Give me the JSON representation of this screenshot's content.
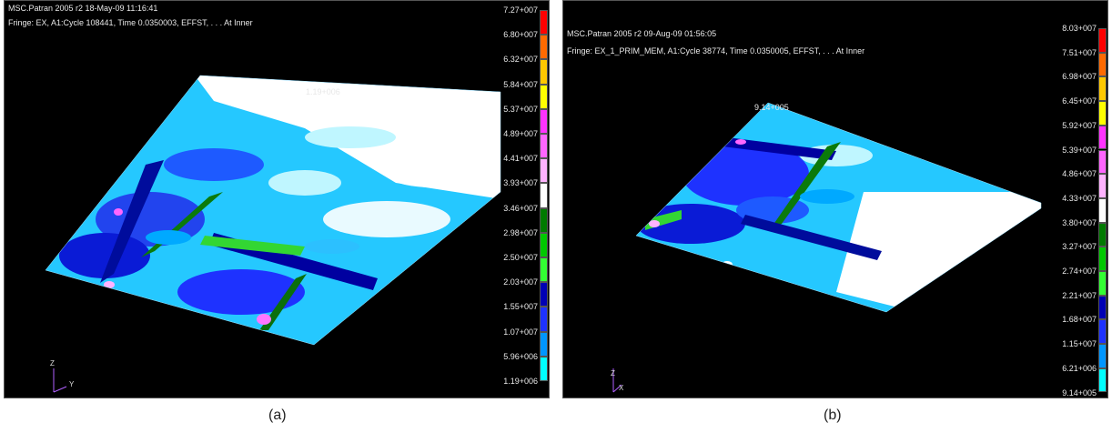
{
  "panels": [
    {
      "id": "a",
      "header_line1": "MSC.Patran 2005 r2 18-May-09 11:16:41",
      "header_line2": "Fringe: EX, A1:Cycle 108441, Time 0.0350003, EFFST, . . . At Inner",
      "peak_label": "1.19+006",
      "axis_z": "Z",
      "axis_y": "Y",
      "caption": "(a)",
      "legend_labels": [
        "7.27+007",
        "6.80+007",
        "6.32+007",
        "5.84+007",
        "5.37+007",
        "4.89+007",
        "4.41+007",
        "3.93+007",
        "3.46+007",
        "2.98+007",
        "2.50+007",
        "2.03+007",
        "1.55+007",
        "1.07+007",
        "5.96+006",
        "1.19+006"
      ]
    },
    {
      "id": "b",
      "header_line1": "MSC.Patran 2005 r2 09-Aug-09 01:56:05",
      "header_line2": "Fringe: EX_1_PRIM_MEM, A1:Cycle 38774, Time 0.0350005, EFFST, . . . At Inner",
      "peak_label": "9.14+005",
      "axis_z": "Z",
      "axis_x": "X",
      "caption": "(b)",
      "legend_labels": [
        "8.03+007",
        "7.51+007",
        "6.98+007",
        "6.45+007",
        "5.92+007",
        "5.39+007",
        "4.86+007",
        "4.33+007",
        "3.80+007",
        "3.27+007",
        "2.74+007",
        "2.21+007",
        "1.68+007",
        "1.15+007",
        "6.21+006",
        "9.14+005"
      ]
    }
  ],
  "legend_colors": [
    "#ff0000",
    "#ff6a00",
    "#ffc800",
    "#ffff00",
    "#ff33ff",
    "#ff66ff",
    "#ffb3ff",
    "#ffffff",
    "#007a00",
    "#00c800",
    "#33ff33",
    "#0000b4",
    "#1e32ff",
    "#0096ff",
    "#00ffff",
    "#ffffff"
  ]
}
